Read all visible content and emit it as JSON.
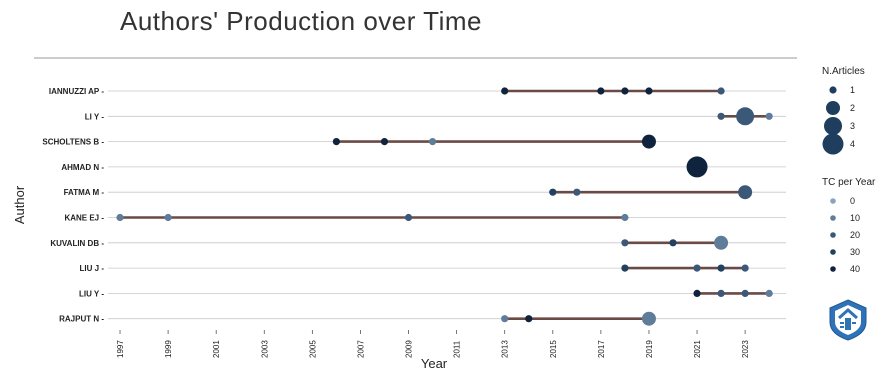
{
  "title": "Authors' Production over Time",
  "chart_data": {
    "type": "scatter",
    "title": "Authors' Production over Time",
    "xlabel": "Year",
    "ylabel": "Author",
    "xlim": [
      1996.5,
      2024.7
    ],
    "x_ticks": [
      "1997",
      "1999",
      "2001",
      "2003",
      "2005",
      "2007",
      "2009",
      "2011",
      "2013",
      "2015",
      "2017",
      "2019",
      "2021",
      "2023"
    ],
    "authors": [
      "IANNUZZI AP",
      "LI Y",
      "SCHOLTENS B",
      "AHMAD N",
      "FATMA M",
      "KANE EJ",
      "KUVALIN DB",
      "LIU J",
      "LIU Y",
      "RAJPUT N"
    ],
    "timelines": [
      {
        "author": "IANNUZZI AP",
        "start": 2013,
        "end": 2022
      },
      {
        "author": "LI Y",
        "start": 2022,
        "end": 2024
      },
      {
        "author": "SCHOLTENS B",
        "start": 2006,
        "end": 2019
      },
      {
        "author": "AHMAD N",
        "start": 2021,
        "end": 2021
      },
      {
        "author": "FATMA M",
        "start": 2015,
        "end": 2023
      },
      {
        "author": "KANE EJ",
        "start": 1997,
        "end": 2018
      },
      {
        "author": "KUVALIN DB",
        "start": 2018,
        "end": 2022
      },
      {
        "author": "LIU J",
        "start": 2018,
        "end": 2023
      },
      {
        "author": "LIU Y",
        "start": 2021,
        "end": 2024
      },
      {
        "author": "RAJPUT N",
        "start": 2013,
        "end": 2019
      }
    ],
    "points": [
      {
        "author": "IANNUZZI AP",
        "year": 2013,
        "articles": 1,
        "tc": 40
      },
      {
        "author": "IANNUZZI AP",
        "year": 2017,
        "articles": 1,
        "tc": 40
      },
      {
        "author": "IANNUZZI AP",
        "year": 2018,
        "articles": 1,
        "tc": 40
      },
      {
        "author": "IANNUZZI AP",
        "year": 2019,
        "articles": 1,
        "tc": 40
      },
      {
        "author": "IANNUZZI AP",
        "year": 2022,
        "articles": 1,
        "tc": 20
      },
      {
        "author": "LI Y",
        "year": 2022,
        "articles": 1,
        "tc": 20
      },
      {
        "author": "LI Y",
        "year": 2023,
        "articles": 3,
        "tc": 20
      },
      {
        "author": "LI Y",
        "year": 2024,
        "articles": 1,
        "tc": 10
      },
      {
        "author": "SCHOLTENS B",
        "year": 2006,
        "articles": 1,
        "tc": 40
      },
      {
        "author": "SCHOLTENS B",
        "year": 2008,
        "articles": 1,
        "tc": 40
      },
      {
        "author": "SCHOLTENS B",
        "year": 2010,
        "articles": 1,
        "tc": 10
      },
      {
        "author": "SCHOLTENS B",
        "year": 2019,
        "articles": 2,
        "tc": 40
      },
      {
        "author": "AHMAD N",
        "year": 2021,
        "articles": 4,
        "tc": 40
      },
      {
        "author": "FATMA M",
        "year": 2015,
        "articles": 1,
        "tc": 30
      },
      {
        "author": "FATMA M",
        "year": 2016,
        "articles": 1,
        "tc": 20
      },
      {
        "author": "FATMA M",
        "year": 2023,
        "articles": 2,
        "tc": 20
      },
      {
        "author": "KANE EJ",
        "year": 1997,
        "articles": 1,
        "tc": 10
      },
      {
        "author": "KANE EJ",
        "year": 1999,
        "articles": 1,
        "tc": 10
      },
      {
        "author": "KANE EJ",
        "year": 2009,
        "articles": 1,
        "tc": 20
      },
      {
        "author": "KANE EJ",
        "year": 2018,
        "articles": 1,
        "tc": 10
      },
      {
        "author": "KUVALIN DB",
        "year": 2018,
        "articles": 1,
        "tc": 20
      },
      {
        "author": "KUVALIN DB",
        "year": 2020,
        "articles": 1,
        "tc": 30
      },
      {
        "author": "KUVALIN DB",
        "year": 2022,
        "articles": 2,
        "tc": 10
      },
      {
        "author": "LIU J",
        "year": 2018,
        "articles": 1,
        "tc": 30
      },
      {
        "author": "LIU J",
        "year": 2021,
        "articles": 1,
        "tc": 20
      },
      {
        "author": "LIU J",
        "year": 2022,
        "articles": 1,
        "tc": 30
      },
      {
        "author": "LIU J",
        "year": 2023,
        "articles": 1,
        "tc": 20
      },
      {
        "author": "LIU Y",
        "year": 2021,
        "articles": 1,
        "tc": 40
      },
      {
        "author": "LIU Y",
        "year": 2022,
        "articles": 1,
        "tc": 20
      },
      {
        "author": "LIU Y",
        "year": 2023,
        "articles": 1,
        "tc": 20
      },
      {
        "author": "LIU Y",
        "year": 2024,
        "articles": 1,
        "tc": 10
      },
      {
        "author": "RAJPUT N",
        "year": 2013,
        "articles": 1,
        "tc": 10
      },
      {
        "author": "RAJPUT N",
        "year": 2014,
        "articles": 1,
        "tc": 40
      },
      {
        "author": "RAJPUT N",
        "year": 2019,
        "articles": 2,
        "tc": 10
      }
    ],
    "legend": {
      "size_title": "N.Articles",
      "size_values": [
        "1",
        "2",
        "3",
        "4"
      ],
      "color_title": "TC per Year",
      "color_values": [
        "0",
        "10",
        "20",
        "30",
        "40"
      ],
      "position": "right"
    },
    "colors": {
      "line": "#6b4a45",
      "tc_0": "#8aa4bd",
      "tc_10": "#5f7d9b",
      "tc_20": "#3b5878",
      "tc_30": "#22405f",
      "tc_40": "#0f243c",
      "grid": "#c8c8c8"
    },
    "logo_icon": "bibliometrix-shield-icon"
  }
}
